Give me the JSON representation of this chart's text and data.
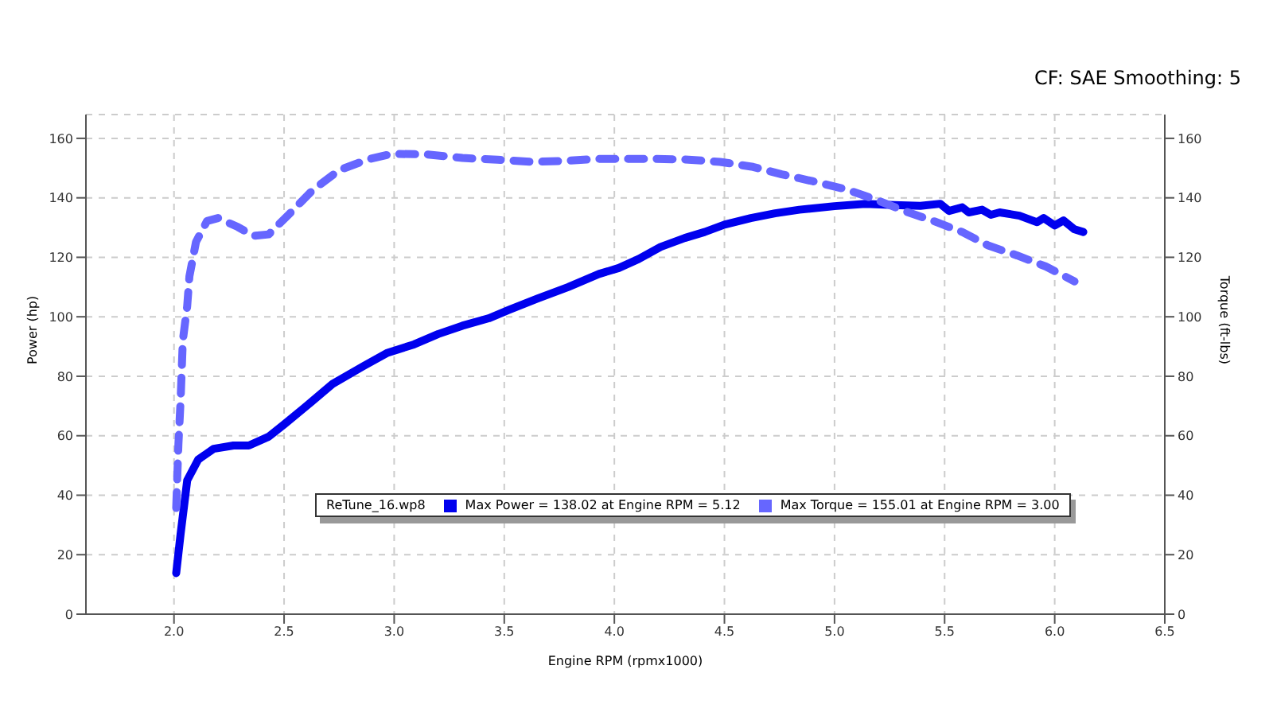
{
  "chart_data": {
    "type": "line",
    "annotations": [
      "CF: SAE Smoothing: 5"
    ],
    "xlabel": "Engine RPM (rpmx1000)",
    "ylabel": "Power (hp)",
    "y2label": "Torque (ft-lbs)",
    "legend_title": "ReTune_16.wp8",
    "legend": "bottom",
    "grid": true,
    "line_style": "solid",
    "xlim": [
      1.6,
      6.5
    ],
    "xticks": [
      {
        "value": 2,
        "label": "2.0"
      },
      {
        "value": 2.5,
        "label": "2.5"
      },
      {
        "value": 3,
        "label": "3.0"
      },
      {
        "value": 3.5,
        "label": "3.5"
      },
      {
        "value": 4,
        "label": "4.0"
      },
      {
        "value": 4.5,
        "label": "4.5"
      },
      {
        "value": 5,
        "label": "5.0"
      },
      {
        "value": 5.5,
        "label": "5.5"
      },
      {
        "value": 6,
        "label": "6.0"
      },
      {
        "value": 6.5,
        "label": "6.5"
      }
    ],
    "ylim": [
      0,
      168
    ],
    "yticks": [
      0,
      20,
      40,
      60,
      80,
      100,
      120,
      140,
      160
    ],
    "y2lim": [
      0,
      168
    ],
    "y2ticks": [
      0,
      20,
      40,
      60,
      80,
      100,
      120,
      140,
      160
    ],
    "series": [
      {
        "name": "Max Power = 138.02 at Engine RPM = 5.12",
        "color": "#0000ee",
        "x": [
          2.01,
          2.03,
          2.06,
          2.11,
          2.18,
          2.27,
          2.34,
          2.43,
          2.5,
          2.61,
          2.72,
          2.86,
          2.97,
          3.09,
          3.2,
          3.31,
          3.43,
          3.52,
          3.65,
          3.79,
          3.93,
          4.02,
          4.11,
          4.21,
          4.32,
          4.41,
          4.5,
          4.62,
          4.73,
          4.84,
          5.0,
          5.14,
          5.27,
          5.39,
          5.48,
          5.52,
          5.58,
          5.61,
          5.67,
          5.71,
          5.75,
          5.84,
          5.92,
          5.95,
          6.0,
          6.04,
          6.09,
          6.13
        ],
        "values": [
          13.8,
          27,
          45,
          52,
          55.6,
          56.7,
          56.7,
          59.7,
          63.8,
          70.5,
          77.4,
          83.4,
          87.9,
          90.7,
          94.2,
          97,
          99.5,
          102.3,
          106.1,
          110,
          114.4,
          116.4,
          119.4,
          123.5,
          126.5,
          128.5,
          131,
          133.2,
          134.8,
          136,
          137.2,
          138,
          137.6,
          137.3,
          138,
          135.6,
          136.8,
          135.1,
          136,
          134.3,
          135.1,
          134,
          131.8,
          133.2,
          130.7,
          132.4,
          129.4,
          128.5
        ]
      },
      {
        "name": "Max Torque = 155.01 at Engine RPM = 3.00",
        "color": "#6666ff",
        "axis": "y2",
        "line_style": "dashed",
        "x": [
          2.01,
          2.02,
          2.03,
          2.04,
          2.06,
          2.07,
          2.1,
          2.15,
          2.2,
          2.29,
          2.36,
          2.43,
          2.52,
          2.63,
          2.75,
          2.88,
          2.99,
          3.15,
          3.31,
          3.47,
          3.63,
          3.77,
          3.93,
          4.09,
          4.19,
          4.32,
          4.48,
          4.63,
          4.76,
          4.9,
          5.05,
          5.18,
          5.32,
          5.45,
          5.58,
          5.7,
          5.83,
          5.96,
          6.09
        ],
        "values": [
          35.7,
          57,
          72,
          92,
          103.6,
          113.6,
          125.2,
          132.2,
          133.2,
          130.2,
          127.2,
          127.7,
          134.3,
          142.6,
          149.3,
          152.9,
          154.8,
          154.6,
          153.4,
          152.8,
          152.1,
          152.4,
          153.1,
          153.1,
          153.1,
          152.9,
          152.1,
          150.4,
          147.9,
          145.6,
          142.9,
          139.6,
          135.5,
          132.2,
          128.5,
          123.9,
          120.6,
          116.9,
          111.9
        ]
      }
    ]
  }
}
